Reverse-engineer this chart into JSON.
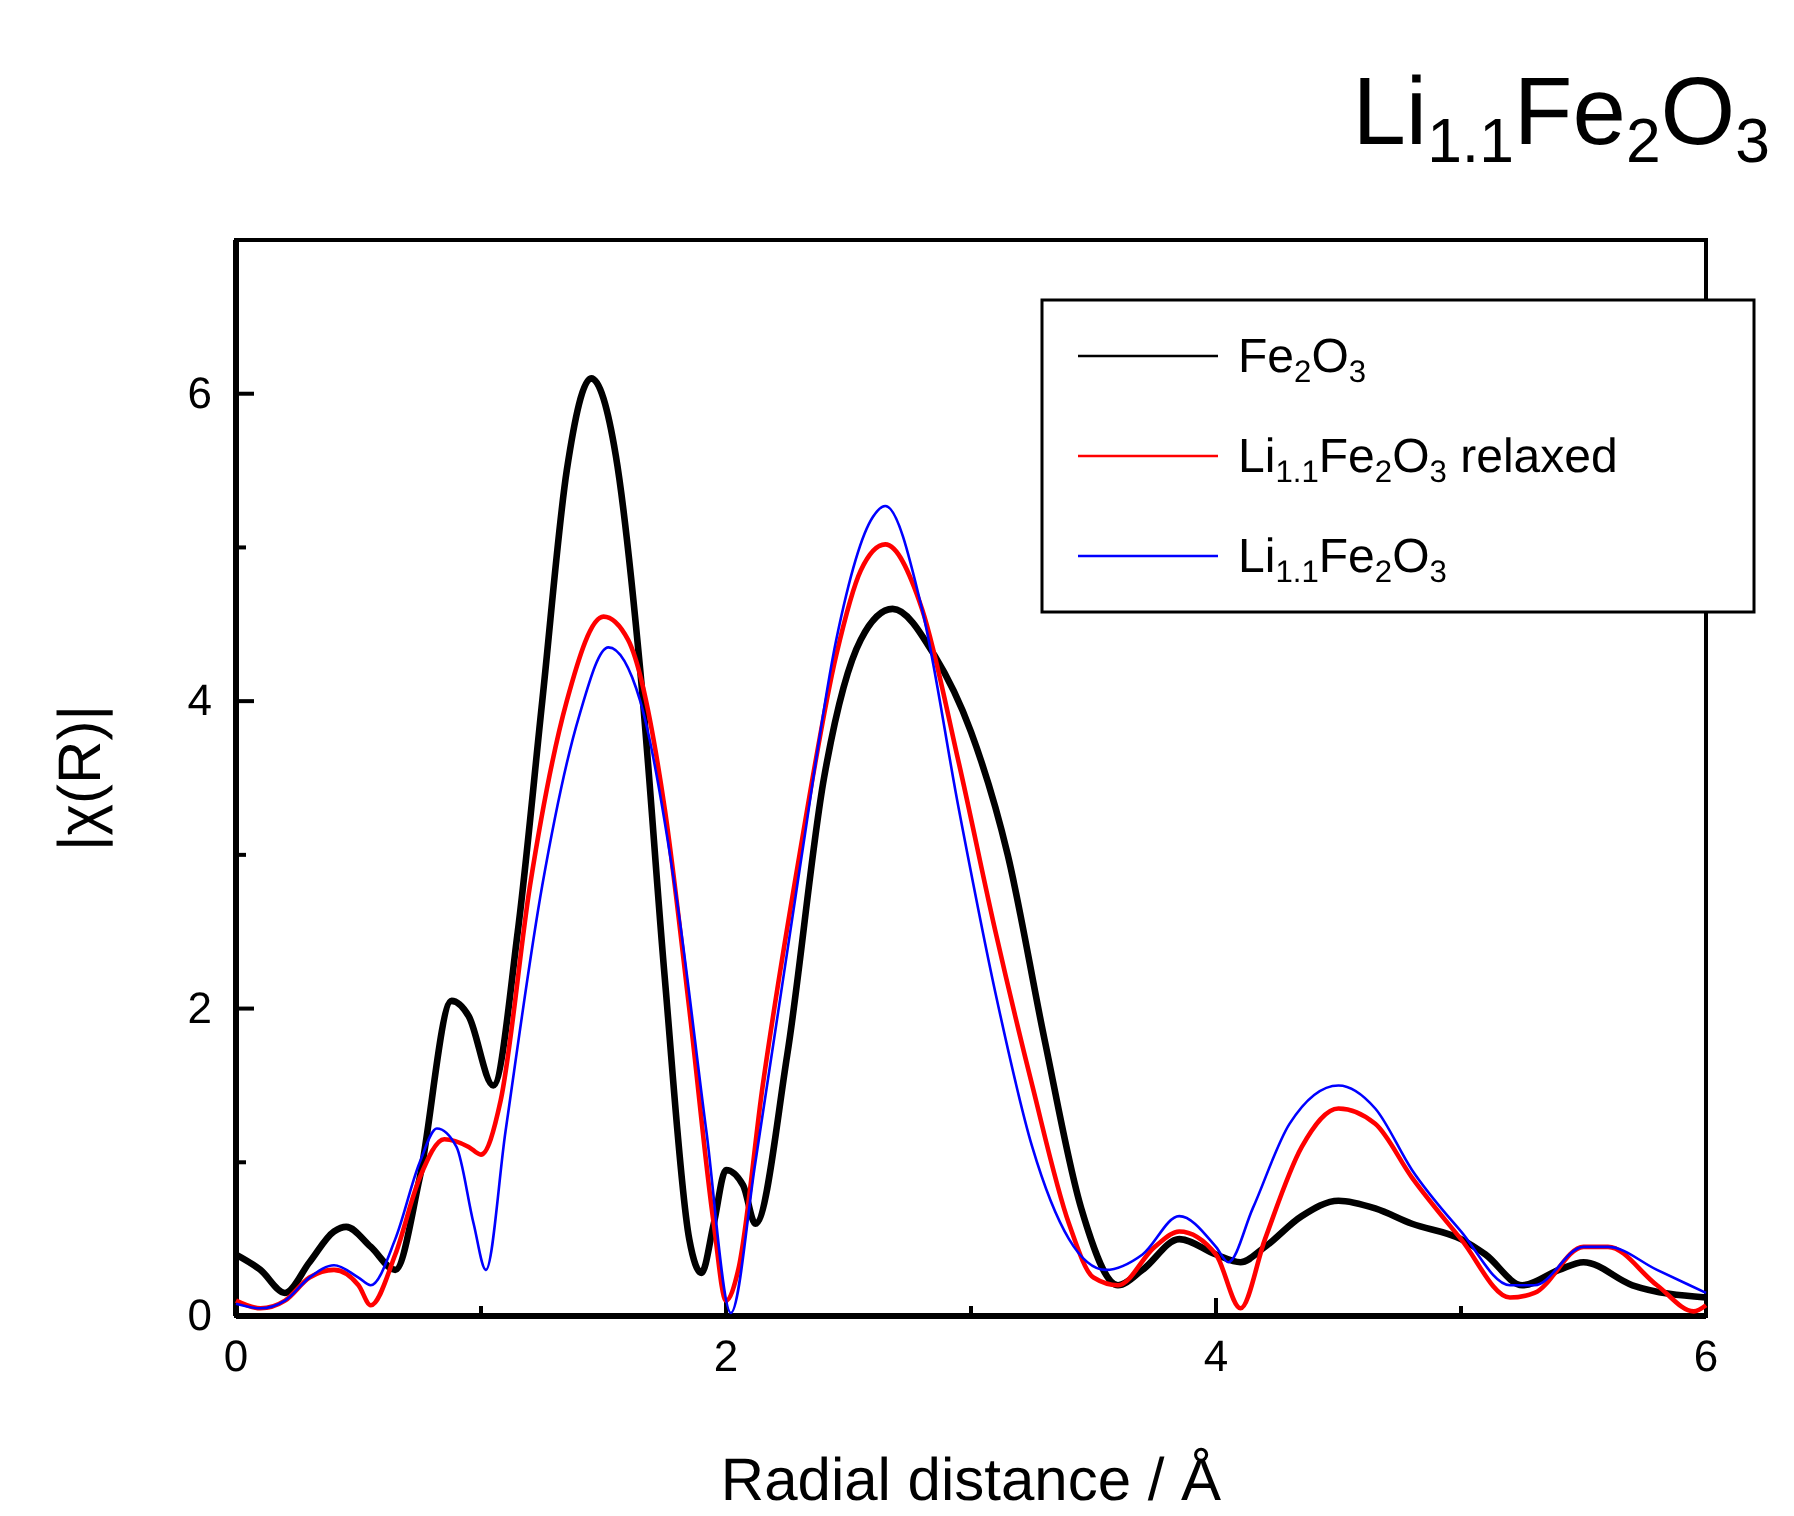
{
  "chart_data": {
    "type": "line",
    "title": "Li$_{1.1}$Fe$_{2}$O$_{3}$",
    "xlabel": "Radial distance / Å",
    "ylabel": "|χ(R)|",
    "xlim": [
      0,
      6
    ],
    "ylim": [
      0,
      7
    ],
    "xticks": [
      0,
      {
        "value": 1,
        "label": null
      },
      2,
      {
        "value": 3,
        "label": null
      },
      4,
      {
        "value": 5,
        "label": null
      },
      6
    ],
    "yticks": [
      0,
      {
        "value": 1,
        "label": null
      },
      2,
      {
        "value": 3,
        "label": null
      },
      4,
      {
        "value": 5,
        "label": null
      },
      6
    ],
    "legend": "top right",
    "grid": false,
    "marker": "none",
    "line_style": "solid",
    "series": [
      {
        "name": "Fe$_{2}$O$_{3}$",
        "color": "#000000",
        "x": [
          0,
          0.1,
          0.2,
          0.3,
          0.4,
          0.45,
          0.55,
          0.65,
          0.75,
          0.88,
          0.95,
          1.05,
          1.15,
          1.25,
          1.35,
          1.45,
          1.55,
          1.65,
          1.75,
          1.85,
          1.9,
          1.95,
          2.0,
          2.07,
          2.12,
          2.25,
          2.4,
          2.55,
          2.68,
          2.85,
          3.0,
          3.15,
          3.3,
          3.45,
          3.6,
          3.7,
          3.85,
          4.0,
          4.1,
          4.2,
          4.35,
          4.5,
          4.65,
          4.8,
          5.0,
          5.1,
          5.25,
          5.4,
          5.5,
          5.7,
          6.0
        ],
        "values": [
          0.4,
          0.3,
          0.15,
          0.35,
          0.55,
          0.58,
          0.45,
          0.3,
          0.9,
          2.05,
          1.95,
          1.5,
          2.5,
          4.0,
          5.5,
          6.1,
          5.6,
          4.2,
          2.2,
          0.5,
          0.28,
          0.6,
          0.95,
          0.85,
          0.6,
          1.7,
          3.5,
          4.4,
          4.6,
          4.3,
          3.8,
          3.0,
          1.8,
          0.7,
          0.2,
          0.3,
          0.5,
          0.4,
          0.35,
          0.45,
          0.65,
          0.75,
          0.7,
          0.6,
          0.5,
          0.4,
          0.2,
          0.3,
          0.35,
          0.2,
          0.12
        ]
      },
      {
        "name": "Li$_{1.1}$Fe$_{2}$O$_{3}$ relaxed",
        "color": "#ff0000",
        "x": [
          0,
          0.1,
          0.2,
          0.3,
          0.4,
          0.5,
          0.55,
          0.65,
          0.75,
          0.85,
          0.95,
          1.0,
          1.08,
          1.2,
          1.35,
          1.5,
          1.6,
          1.75,
          1.85,
          1.95,
          2.0,
          2.05,
          2.15,
          2.3,
          2.45,
          2.55,
          2.65,
          2.8,
          2.95,
          3.1,
          3.25,
          3.4,
          3.5,
          3.6,
          3.75,
          3.85,
          4.0,
          4.1,
          4.2,
          4.35,
          4.5,
          4.65,
          4.8,
          5.0,
          5.2,
          5.3,
          5.5,
          5.6,
          5.8,
          5.95,
          6.0
        ],
        "values": [
          0.1,
          0.05,
          0.1,
          0.25,
          0.3,
          0.2,
          0.07,
          0.4,
          0.9,
          1.15,
          1.1,
          1.05,
          1.4,
          2.8,
          4.0,
          4.55,
          4.4,
          3.3,
          2.0,
          0.6,
          0.1,
          0.3,
          1.5,
          3.0,
          4.3,
          4.85,
          5.02,
          4.6,
          3.6,
          2.5,
          1.5,
          0.6,
          0.25,
          0.2,
          0.45,
          0.55,
          0.4,
          0.05,
          0.5,
          1.1,
          1.35,
          1.25,
          0.9,
          0.5,
          0.12,
          0.15,
          0.45,
          0.45,
          0.2,
          0.03,
          0.07
        ]
      },
      {
        "name": "Li$_{1.1}$Fe$_{2}$O$_{3}$",
        "color": "#0000ff",
        "x": [
          0,
          0.1,
          0.2,
          0.3,
          0.4,
          0.5,
          0.55,
          0.65,
          0.75,
          0.82,
          0.9,
          0.97,
          1.02,
          1.1,
          1.25,
          1.4,
          1.52,
          1.65,
          1.8,
          1.92,
          2.02,
          2.12,
          2.3,
          2.45,
          2.6,
          2.65,
          2.8,
          2.95,
          3.1,
          3.25,
          3.4,
          3.55,
          3.7,
          3.85,
          4.0,
          4.05,
          4.15,
          4.3,
          4.5,
          4.65,
          4.8,
          5.0,
          5.2,
          5.3,
          5.5,
          5.6,
          5.8,
          6.0
        ],
        "values": [
          0.08,
          0.05,
          0.1,
          0.25,
          0.33,
          0.25,
          0.2,
          0.5,
          1.0,
          1.22,
          1.1,
          0.6,
          0.3,
          1.2,
          2.8,
          3.9,
          4.35,
          4.0,
          2.7,
          1.2,
          0.02,
          1.0,
          2.9,
          4.4,
          5.2,
          5.27,
          4.6,
          3.3,
          2.1,
          1.1,
          0.5,
          0.3,
          0.4,
          0.65,
          0.45,
          0.35,
          0.7,
          1.25,
          1.5,
          1.35,
          0.95,
          0.55,
          0.2,
          0.2,
          0.45,
          0.45,
          0.3,
          0.15
        ]
      }
    ]
  }
}
